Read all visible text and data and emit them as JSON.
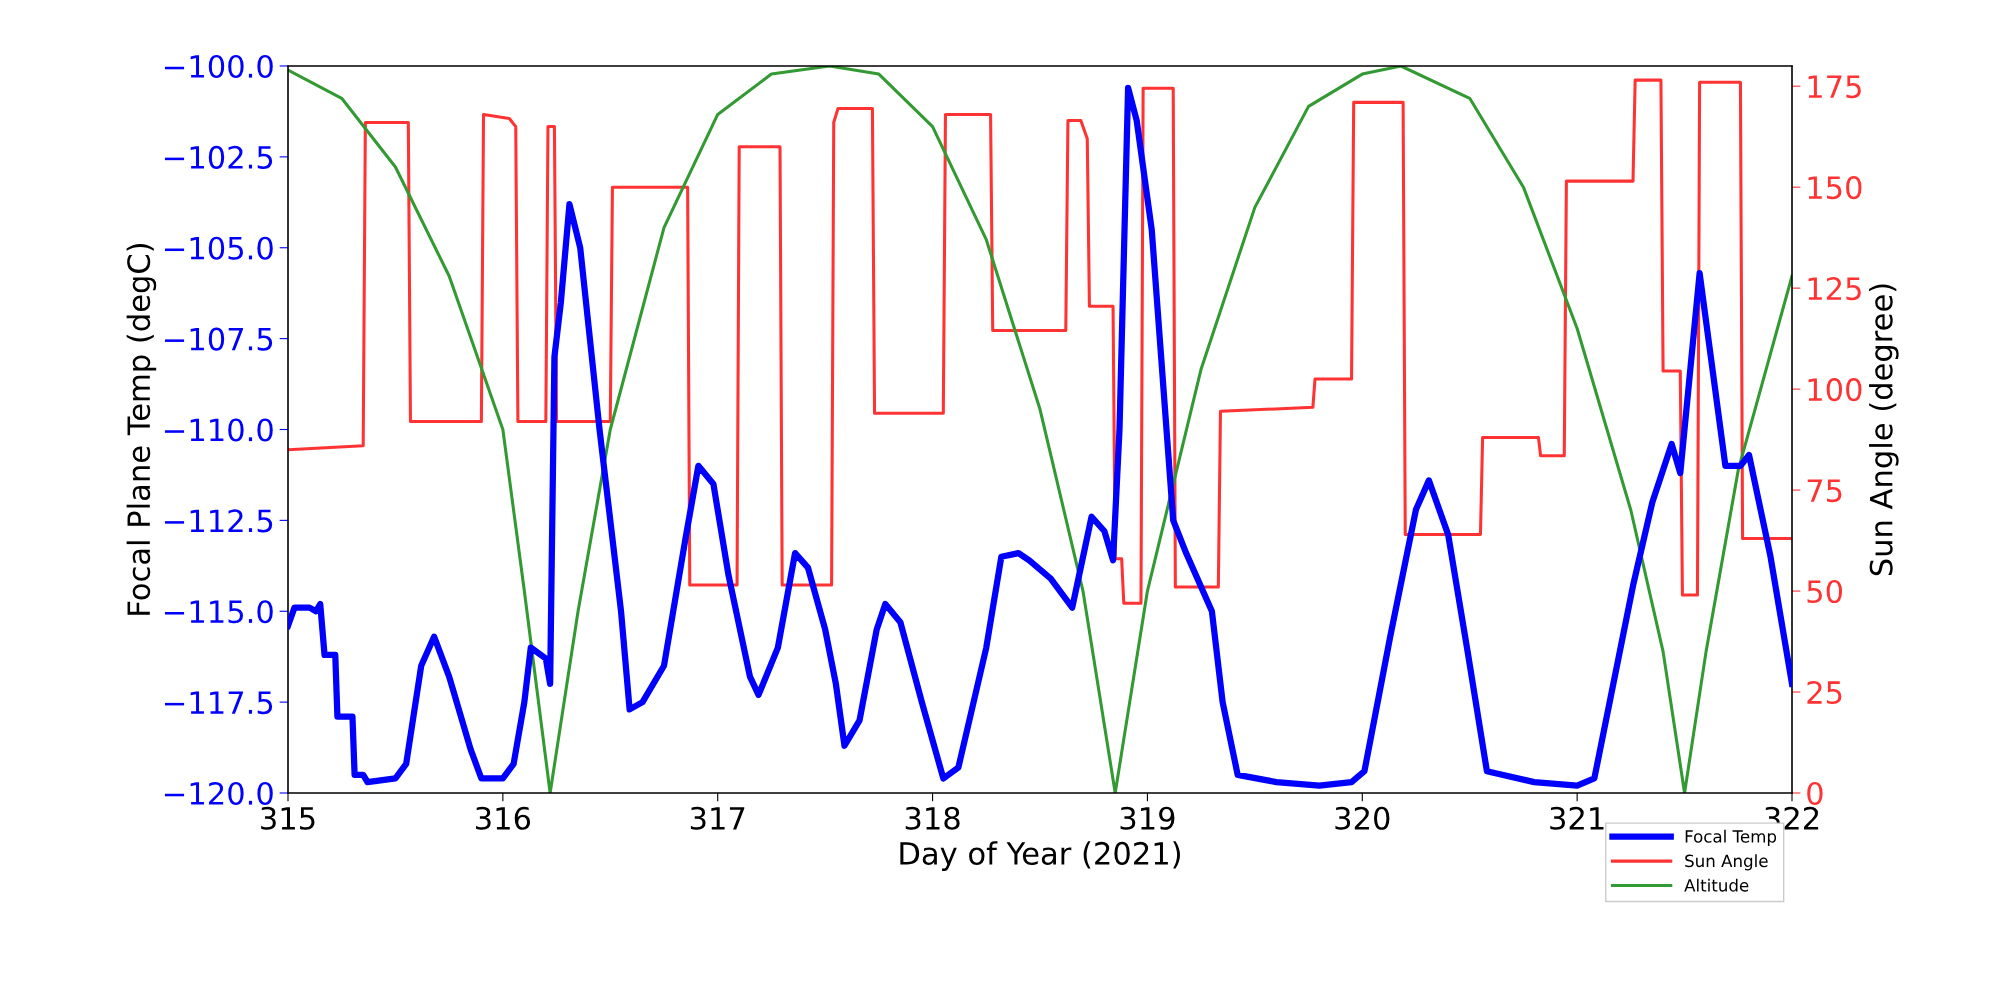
{
  "chart_data": {
    "type": "line",
    "xlabel": "Day of Year (2021)",
    "ylabel": "Focal Plane Temp (degC)",
    "y2label": "Sun Angle (degree)",
    "xlim": [
      315,
      322
    ],
    "xticks": [
      315,
      316,
      317,
      318,
      319,
      320,
      321,
      322
    ],
    "ylim": [
      -120,
      -100
    ],
    "yticks": [
      {
        "value": -120,
        "label": "−120.0"
      },
      {
        "value": -117.5,
        "label": "−117.5"
      },
      {
        "value": -115,
        "label": "−115.0"
      },
      {
        "value": -112.5,
        "label": "−112.5"
      },
      {
        "value": -110,
        "label": "−110.0"
      },
      {
        "value": -107.5,
        "label": "−107.5"
      },
      {
        "value": -105,
        "label": "−105.0"
      },
      {
        "value": -102.5,
        "label": "−102.5"
      },
      {
        "value": -100,
        "label": "−100.0"
      }
    ],
    "y2lim": [
      0,
      180
    ],
    "y2ticks": [
      0,
      25,
      50,
      75,
      100,
      125,
      150,
      175
    ],
    "grid": false,
    "legend": "bottom right",
    "marker": "none",
    "line_style": "solid",
    "series": [
      {
        "name": "Focal Temp",
        "color": "#0000ff",
        "x": [
          315.0,
          315.03,
          315.1,
          315.13,
          315.15,
          315.17,
          315.22,
          315.23,
          315.3,
          315.31,
          315.35,
          315.37,
          315.5,
          315.55,
          315.62,
          315.68,
          315.75,
          315.85,
          315.9,
          316.0,
          316.05,
          316.1,
          316.13,
          316.2,
          316.22,
          316.24,
          316.27,
          316.31,
          316.36,
          316.45,
          316.55,
          316.59,
          316.65,
          316.75,
          316.85,
          316.91,
          316.98,
          317.05,
          317.15,
          317.19,
          317.28,
          317.36,
          317.42,
          317.5,
          317.55,
          317.59,
          317.66,
          317.74,
          317.78,
          317.85,
          317.95,
          318.05,
          318.12,
          318.25,
          318.32,
          318.4,
          318.45,
          318.55,
          318.65,
          318.74,
          318.8,
          318.84,
          318.87,
          318.91,
          318.95,
          319.02,
          319.07,
          319.12,
          319.18,
          319.3,
          319.35,
          319.42,
          319.6,
          319.8,
          319.95,
          320.01,
          320.13,
          320.25,
          320.31,
          320.4,
          320.49,
          320.58,
          320.8,
          321.0,
          321.08,
          321.26,
          321.35,
          321.44,
          321.48,
          321.57,
          321.69,
          321.76,
          321.8,
          321.9,
          322.0
        ],
        "values": [
          -115.4,
          -114.9,
          -114.9,
          -115.0,
          -114.8,
          -116.2,
          -116.2,
          -117.9,
          -117.9,
          -119.5,
          -119.5,
          -119.7,
          -119.6,
          -119.2,
          -116.5,
          -115.7,
          -116.8,
          -118.8,
          -119.6,
          -119.6,
          -119.2,
          -117.5,
          -116.0,
          -116.3,
          -117.0,
          -108.0,
          -106.5,
          -103.8,
          -105.0,
          -110.0,
          -115.0,
          -117.7,
          -117.5,
          -116.5,
          -113.0,
          -111.0,
          -111.5,
          -114.0,
          -116.8,
          -117.3,
          -116.0,
          -113.4,
          -113.8,
          -115.5,
          -117.0,
          -118.7,
          -118.0,
          -115.5,
          -114.8,
          -115.3,
          -117.5,
          -119.6,
          -119.3,
          -116.0,
          -113.5,
          -113.4,
          -113.6,
          -114.1,
          -114.9,
          -112.4,
          -112.8,
          -113.6,
          -110.0,
          -100.6,
          -101.5,
          -104.5,
          -108.5,
          -112.5,
          -113.4,
          -115.0,
          -117.5,
          -119.5,
          -119.7,
          -119.8,
          -119.7,
          -119.4,
          -115.7,
          -112.2,
          -111.4,
          -112.9,
          -116.1,
          -119.4,
          -119.7,
          -119.8,
          -119.6,
          -114.3,
          -112.0,
          -110.4,
          -111.2,
          -105.7,
          -111.0,
          -111.0,
          -110.7,
          -113.5,
          -117.0
        ]
      },
      {
        "name": "Sun Angle",
        "color": "#ff3333",
        "axis": "y2",
        "x": [
          315.0,
          315.35,
          315.36,
          315.56,
          315.57,
          315.9,
          315.91,
          316.03,
          316.06,
          316.07,
          316.2,
          316.21,
          316.24,
          316.25,
          316.5,
          316.51,
          316.86,
          316.87,
          317.09,
          317.1,
          317.29,
          317.3,
          317.53,
          317.54,
          317.56,
          317.72,
          317.73,
          318.05,
          318.06,
          318.27,
          318.28,
          318.62,
          318.63,
          318.69,
          318.72,
          318.73,
          318.84,
          318.85,
          318.88,
          318.89,
          318.97,
          318.98,
          319.12,
          319.13,
          319.33,
          319.34,
          319.77,
          319.78,
          319.95,
          319.96,
          320.19,
          320.2,
          320.55,
          320.56,
          320.82,
          320.83,
          320.94,
          320.95,
          321.26,
          321.27,
          321.39,
          321.4,
          321.48,
          321.49,
          321.56,
          321.57,
          321.76,
          321.77,
          322.0
        ],
        "values": [
          85,
          86,
          166,
          166,
          92,
          92,
          168,
          167,
          165,
          92,
          92,
          165,
          165,
          92,
          92,
          150,
          150,
          51.5,
          51.5,
          160,
          160,
          51.5,
          51.5,
          166,
          169.5,
          169.5,
          94,
          94,
          168,
          168,
          114.5,
          114.5,
          166.5,
          166.5,
          162,
          120.5,
          120.5,
          58,
          58,
          47,
          47,
          174.5,
          174.5,
          51,
          51,
          94.5,
          95.5,
          102.5,
          102.5,
          171,
          171,
          64,
          64,
          88,
          88,
          83.5,
          83.5,
          151.5,
          151.5,
          176.5,
          176.5,
          104.5,
          104.5,
          49,
          49,
          176,
          176,
          63,
          63
        ]
      },
      {
        "name": "Altitude",
        "color": "#339933",
        "axis": "y2",
        "x": [
          315.0,
          315.25,
          315.5,
          315.75,
          316.0,
          316.1,
          316.22,
          316.35,
          316.5,
          316.75,
          317.0,
          317.25,
          317.52,
          317.75,
          318.0,
          318.25,
          318.5,
          318.7,
          318.85,
          319.0,
          319.25,
          319.5,
          319.75,
          320.0,
          320.18,
          320.5,
          320.75,
          321.0,
          321.25,
          321.4,
          321.5,
          321.6,
          321.75,
          322.0
        ],
        "values": [
          179,
          172,
          155,
          128,
          90,
          50,
          0,
          45,
          90,
          140,
          168,
          178,
          180,
          178,
          165,
          137,
          95,
          50,
          0,
          50,
          105,
          145,
          170,
          178,
          180,
          172,
          150,
          115,
          70,
          35,
          0,
          35,
          80,
          128
        ]
      }
    ]
  }
}
